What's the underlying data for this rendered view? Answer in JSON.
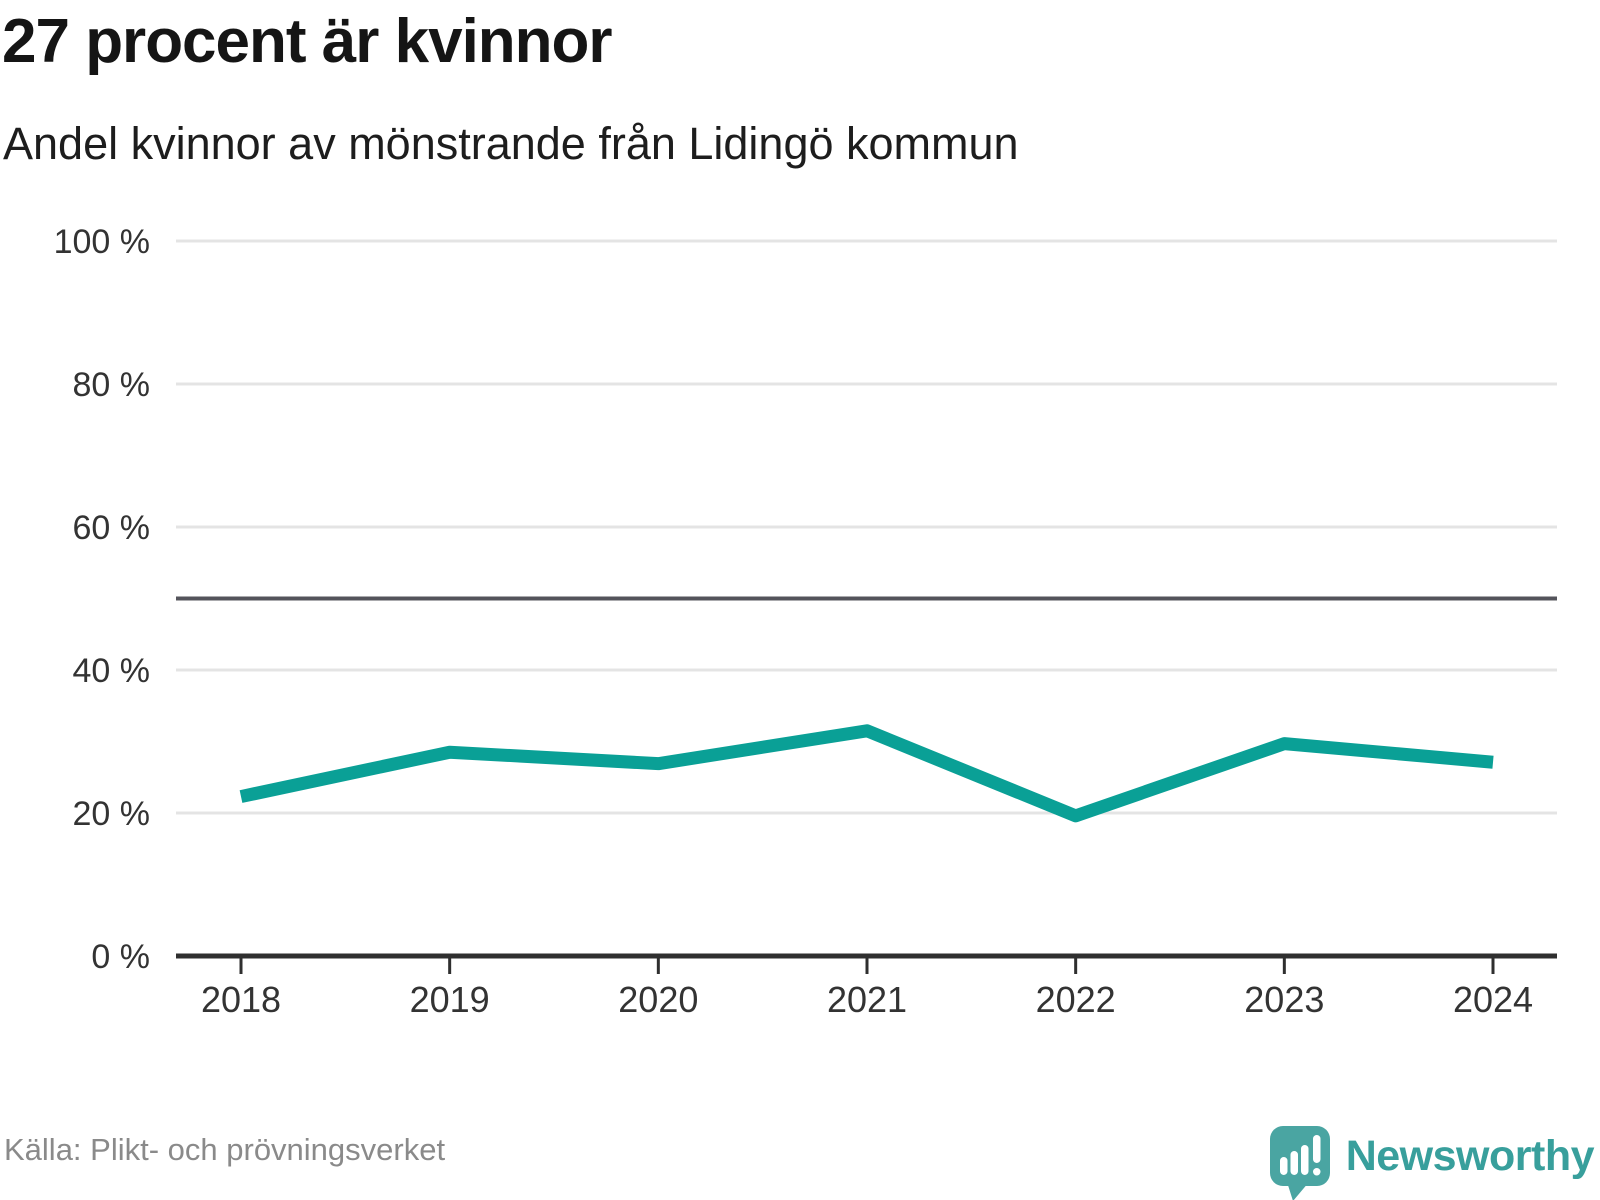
{
  "header": {
    "title": "27 procent är kvinnor",
    "subtitle": "Andel kvinnor av mönstrande från Lidingö kommun"
  },
  "chart_data": {
    "type": "line",
    "title": "27 procent är kvinnor",
    "subtitle": "Andel kvinnor av mönstrande från Lidingö kommun",
    "categories": [
      "2018",
      "2019",
      "2020",
      "2021",
      "2022",
      "2023",
      "2024"
    ],
    "series": [
      {
        "name": "Andel kvinnor av mönstrande",
        "values": [
          22.3,
          28.5,
          26.9,
          31.5,
          19.6,
          29.7,
          27.1
        ]
      }
    ],
    "ylim": [
      0,
      100
    ],
    "yticks": [
      0,
      20,
      40,
      60,
      80,
      100
    ],
    "ytick_labels": [
      "0 %",
      "20 %",
      "40 %",
      "60 %",
      "80 %",
      "100 %"
    ],
    "reference_line": 50,
    "grid": true,
    "legend": "none",
    "line_color": "#0aa096",
    "grid_color": "#e4e4e4",
    "reference_line_color": "#54545b",
    "axis_color": "#2f2f2f",
    "tick_label_color": "#333333"
  },
  "footer": {
    "source": "Källa: Plikt- och prövningsverket",
    "brand": "Newsworthy",
    "brand_color": "#389f9c",
    "logo_color": "#4aa5a2",
    "logo_icon": "speech-bubble-bar-chart-exclamation"
  }
}
